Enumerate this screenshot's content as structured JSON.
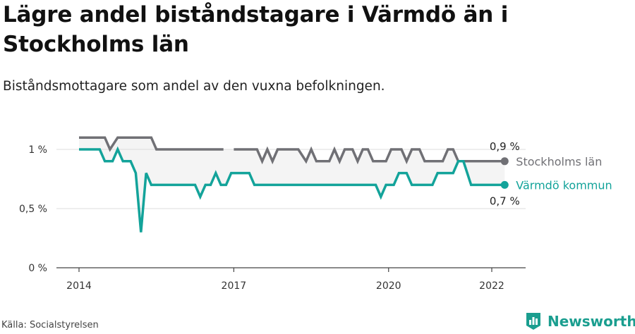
{
  "title": "Lägre andel biståndstagare i Värmdö än i Stockholms län",
  "subtitle": "Biståndsmottagare som andel av den vuxna befolkningen.",
  "source": "Källa: Socialstyrelsen",
  "brand": "Newsworthy",
  "colors": {
    "stockholm": "#707075",
    "varmdo": "#13a39a",
    "band": "#f4f4f4",
    "grid": "#dcdcdc",
    "axis": "#444444"
  },
  "chart_data": {
    "type": "line",
    "y_ticks": [
      {
        "value": 0,
        "label": "0 %"
      },
      {
        "value": 0.5,
        "label": "0,5 %"
      },
      {
        "value": 1,
        "label": "1 %"
      }
    ],
    "x_ticks": [
      {
        "value": 2014,
        "label": "2014"
      },
      {
        "value": 2017,
        "label": "2017"
      },
      {
        "value": 2020,
        "label": "2020"
      },
      {
        "value": 2022,
        "label": "2022"
      }
    ],
    "xlim": [
      2013.5,
      2022.65
    ],
    "ylim": [
      0,
      1.15
    ],
    "series": [
      {
        "name": "Stockholms län",
        "key": "stockholm",
        "end_label": "0,9 %",
        "points": [
          [
            2014.0,
            1.1
          ],
          [
            2014.5,
            1.1
          ],
          [
            2014.6,
            1.0
          ],
          [
            2014.75,
            1.1
          ],
          [
            2015.4,
            1.1
          ],
          [
            2015.5,
            1.0
          ],
          [
            2016.8,
            1.0
          ],
          [
            null,
            null
          ],
          [
            2017.0,
            1.0
          ],
          [
            2017.45,
            1.0
          ],
          [
            2017.55,
            0.9
          ],
          [
            2017.65,
            1.0
          ],
          [
            2017.75,
            0.9
          ],
          [
            2017.85,
            1.0
          ],
          [
            2018.25,
            1.0
          ],
          [
            2018.4,
            0.9
          ],
          [
            2018.5,
            1.0
          ],
          [
            2018.6,
            0.9
          ],
          [
            2018.85,
            0.9
          ],
          [
            2018.95,
            1.0
          ],
          [
            2019.05,
            0.9
          ],
          [
            2019.15,
            1.0
          ],
          [
            2019.3,
            1.0
          ],
          [
            2019.4,
            0.9
          ],
          [
            2019.5,
            1.0
          ],
          [
            2019.6,
            1.0
          ],
          [
            2019.7,
            0.9
          ],
          [
            2019.95,
            0.9
          ],
          [
            2020.05,
            1.0
          ],
          [
            2020.25,
            1.0
          ],
          [
            2020.35,
            0.9
          ],
          [
            2020.45,
            1.0
          ],
          [
            2020.6,
            1.0
          ],
          [
            2020.7,
            0.9
          ],
          [
            2021.05,
            0.9
          ],
          [
            2021.15,
            1.0
          ],
          [
            2021.25,
            1.0
          ],
          [
            2021.35,
            0.9
          ],
          [
            2022.25,
            0.9
          ]
        ]
      },
      {
        "name": "Värmdö kommun",
        "key": "varmdo",
        "end_label": "0,7 %",
        "points": [
          [
            2014.0,
            1.0
          ],
          [
            2014.4,
            1.0
          ],
          [
            2014.5,
            0.9
          ],
          [
            2014.65,
            0.9
          ],
          [
            2014.75,
            1.0
          ],
          [
            2014.85,
            0.9
          ],
          [
            2015.0,
            0.9
          ],
          [
            2015.1,
            0.8
          ],
          [
            2015.2,
            0.3
          ],
          [
            2015.3,
            0.8
          ],
          [
            2015.4,
            0.7
          ],
          [
            2016.25,
            0.7
          ],
          [
            2016.35,
            0.6
          ],
          [
            2016.45,
            0.7
          ],
          [
            2016.55,
            0.7
          ],
          [
            2016.65,
            0.8
          ],
          [
            2016.75,
            0.7
          ],
          [
            2016.85,
            0.7
          ],
          [
            2016.95,
            0.8
          ],
          [
            2017.3,
            0.8
          ],
          [
            2017.4,
            0.7
          ],
          [
            2019.75,
            0.7
          ],
          [
            2019.85,
            0.6
          ],
          [
            2019.95,
            0.7
          ],
          [
            2020.1,
            0.7
          ],
          [
            2020.2,
            0.8
          ],
          [
            2020.35,
            0.8
          ],
          [
            2020.45,
            0.7
          ],
          [
            2020.85,
            0.7
          ],
          [
            2020.95,
            0.8
          ],
          [
            2021.25,
            0.8
          ],
          [
            2021.35,
            0.9
          ],
          [
            2021.45,
            0.9
          ],
          [
            2021.6,
            0.7
          ],
          [
            2022.25,
            0.7
          ]
        ]
      }
    ]
  }
}
